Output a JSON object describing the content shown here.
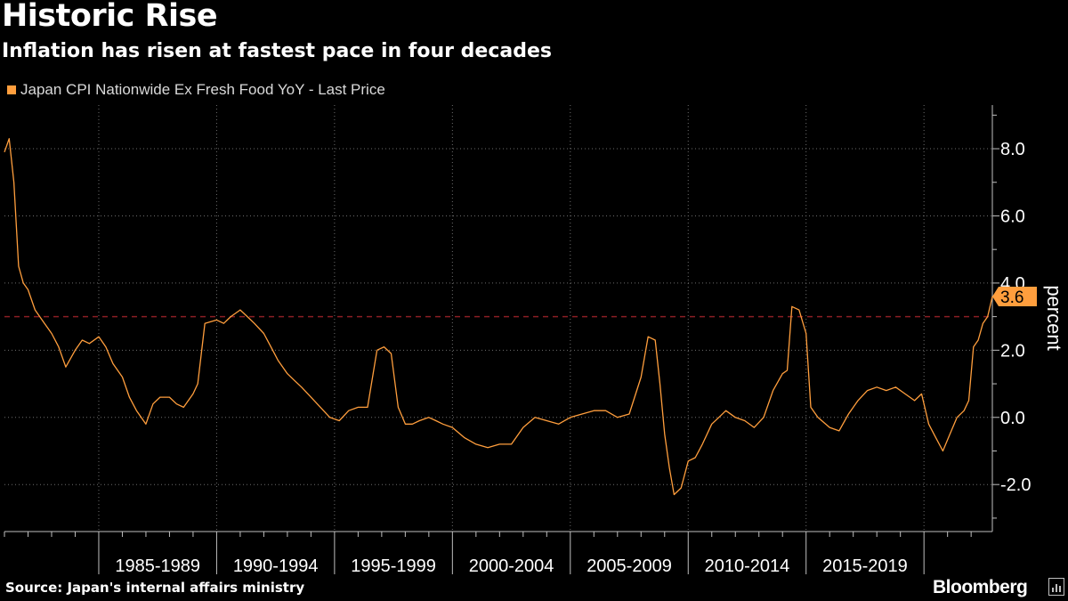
{
  "header": {
    "title": "Historic Rise",
    "subtitle": "Inflation has risen at fastest pace in four decades"
  },
  "footer": {
    "source": "Source: Japan's internal affairs ministry",
    "brand": "Bloomberg"
  },
  "colors": {
    "series": "#ff9e3d",
    "reference_line": "#8b1e24",
    "grid": "#6e6e6e",
    "background": "#000000"
  },
  "chart_data": {
    "type": "line",
    "title": "Historic Rise",
    "subtitle": "Inflation has risen at fastest pace in four decades",
    "ylabel": "percent",
    "ylim": [
      -3.4,
      9.3
    ],
    "xlim": [
      1981.0,
      2022.9
    ],
    "y_ticks": [
      -2.0,
      0.0,
      2.0,
      4.0,
      6.0,
      8.0
    ],
    "y_tick_labels": [
      "-2.0",
      "0.0",
      "2.0",
      "4.0",
      "6.0",
      "8.0"
    ],
    "x_period_boundaries": [
      1985,
      1990,
      1995,
      2000,
      2005,
      2010,
      2015,
      2020
    ],
    "x_period_labels": [
      {
        "label": "1985-1989",
        "from": 1985,
        "to": 1990
      },
      {
        "label": "1990-1994",
        "from": 1990,
        "to": 1995
      },
      {
        "label": "1995-1999",
        "from": 1995,
        "to": 2000
      },
      {
        "label": "2000-2004",
        "from": 2000,
        "to": 2005
      },
      {
        "label": "2005-2009",
        "from": 2005,
        "to": 2010
      },
      {
        "label": "2010-2014",
        "from": 2010,
        "to": 2015
      },
      {
        "label": "2015-2019",
        "from": 2015,
        "to": 2020
      }
    ],
    "grid": true,
    "legend_position": "top-left",
    "reference_line": {
      "y": 3.0
    },
    "last_value": {
      "value": 3.6,
      "label": "3.6"
    },
    "series": [
      {
        "name": "Japan CPI Nationwide Ex Fresh Food YoY - Last Price",
        "x": [
          1981.0,
          1981.2,
          1981.4,
          1981.6,
          1981.8,
          1982.0,
          1982.3,
          1982.7,
          1983.0,
          1983.3,
          1983.6,
          1984.0,
          1984.3,
          1984.6,
          1985.0,
          1985.3,
          1985.6,
          1986.0,
          1986.3,
          1986.6,
          1987.0,
          1987.3,
          1987.6,
          1988.0,
          1988.3,
          1988.6,
          1989.0,
          1989.2,
          1989.5,
          1990.0,
          1990.3,
          1990.6,
          1991.0,
          1991.3,
          1991.6,
          1992.0,
          1992.3,
          1992.6,
          1993.0,
          1993.3,
          1993.6,
          1994.0,
          1994.4,
          1994.8,
          1995.2,
          1995.6,
          1996.0,
          1996.4,
          1996.8,
          1997.1,
          1997.4,
          1997.7,
          1998.0,
          1998.3,
          1998.6,
          1999.0,
          1999.3,
          1999.6,
          2000.0,
          2000.5,
          2001.0,
          2001.5,
          2002.0,
          2002.5,
          2003.0,
          2003.5,
          2004.0,
          2004.5,
          2005.0,
          2005.5,
          2006.0,
          2006.5,
          2007.0,
          2007.5,
          2008.0,
          2008.3,
          2008.6,
          2008.8,
          2009.0,
          2009.2,
          2009.4,
          2009.7,
          2010.0,
          2010.3,
          2010.6,
          2011.0,
          2011.3,
          2011.6,
          2012.0,
          2012.4,
          2012.8,
          2013.2,
          2013.6,
          2014.0,
          2014.2,
          2014.4,
          2014.7,
          2015.0,
          2015.2,
          2015.5,
          2016.0,
          2016.4,
          2016.8,
          2017.2,
          2017.6,
          2018.0,
          2018.4,
          2018.8,
          2019.2,
          2019.6,
          2019.9,
          2020.2,
          2020.5,
          2020.8,
          2021.1,
          2021.4,
          2021.7,
          2021.9,
          2022.1,
          2022.3,
          2022.5,
          2022.7,
          2022.9
        ],
        "values": [
          7.9,
          8.3,
          7.0,
          4.5,
          4.0,
          3.8,
          3.2,
          2.8,
          2.5,
          2.1,
          1.5,
          2.0,
          2.3,
          2.2,
          2.4,
          2.1,
          1.6,
          1.2,
          0.6,
          0.2,
          -0.2,
          0.4,
          0.6,
          0.6,
          0.4,
          0.3,
          0.7,
          1.0,
          2.8,
          2.9,
          2.8,
          3.0,
          3.2,
          3.0,
          2.8,
          2.5,
          2.1,
          1.7,
          1.3,
          1.1,
          0.9,
          0.6,
          0.3,
          0.0,
          -0.1,
          0.2,
          0.3,
          0.3,
          2.0,
          2.1,
          1.9,
          0.3,
          -0.2,
          -0.2,
          -0.1,
          0.0,
          -0.1,
          -0.2,
          -0.3,
          -0.6,
          -0.8,
          -0.9,
          -0.8,
          -0.8,
          -0.3,
          0.0,
          -0.1,
          -0.2,
          0.0,
          0.1,
          0.2,
          0.2,
          0.0,
          0.1,
          1.2,
          2.4,
          2.3,
          1.0,
          -0.5,
          -1.5,
          -2.3,
          -2.1,
          -1.3,
          -1.2,
          -0.8,
          -0.2,
          0.0,
          0.2,
          0.0,
          -0.1,
          -0.3,
          0.0,
          0.8,
          1.3,
          1.4,
          3.3,
          3.2,
          2.5,
          0.3,
          0.0,
          -0.3,
          -0.4,
          0.1,
          0.5,
          0.8,
          0.9,
          0.8,
          0.9,
          0.7,
          0.5,
          0.7,
          -0.2,
          -0.6,
          -1.0,
          -0.5,
          0.0,
          0.2,
          0.5,
          2.1,
          2.3,
          2.8,
          3.0,
          3.6
        ]
      }
    ]
  }
}
